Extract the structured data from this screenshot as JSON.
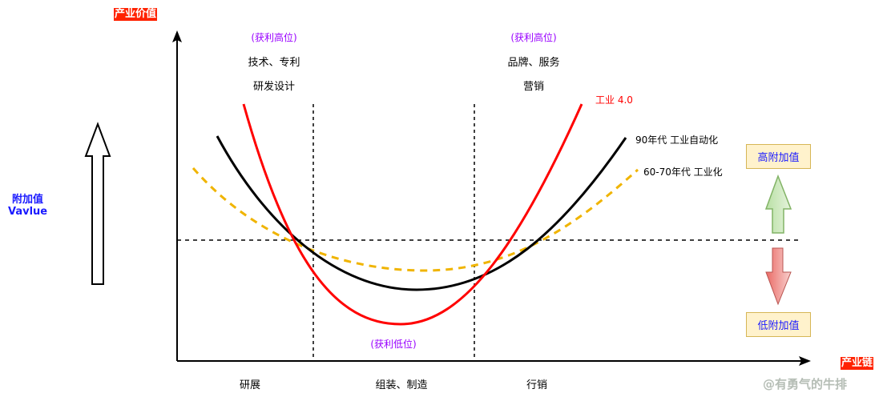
{
  "axes": {
    "y_label": "产业价值",
    "x_label": "产业链"
  },
  "top_labels": {
    "left": {
      "note": "(获利高位)",
      "line1": "技术、专利",
      "line2": "研发设计"
    },
    "right": {
      "note": "(获利高位)",
      "line1": "品牌、服务",
      "line2": "营销"
    }
  },
  "bottom_note": "(获利低位)",
  "stages": [
    "研展",
    "组装、制造",
    "行销"
  ],
  "side_label": {
    "line1": "附加值",
    "line2": "Vavlue"
  },
  "curves": [
    {
      "name": "工业 4.0",
      "color": "#ff0000",
      "style": "solid"
    },
    {
      "name": "90年代 工业自动化",
      "color": "#000000",
      "style": "solid"
    },
    {
      "name": "60-70年代 工业化",
      "color": "#f0b400",
      "style": "dashed"
    }
  ],
  "value_boxes": {
    "high": "高附加值",
    "low": "低附加值"
  },
  "colors": {
    "tag": "#ff2200",
    "box_fill": "#fff2cc",
    "up_arrow": "#82b366",
    "down_arrow": "#ea6b66"
  },
  "watermark": "@有勇气的牛排"
}
